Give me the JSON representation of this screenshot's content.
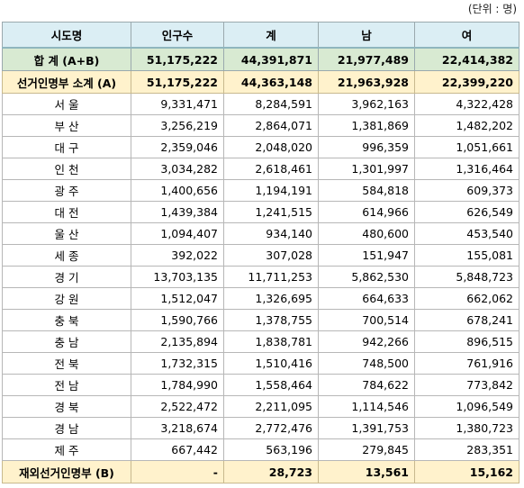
{
  "unit_label": "(단위 : 명)",
  "headers": [
    "시도명",
    "인구수",
    "계",
    "남",
    "여"
  ],
  "total_row": {
    "name": "합 계 (A+B)",
    "population": "51,175,222",
    "sum": "44,391,871",
    "male": "21,977,489",
    "female": "22,414,382"
  },
  "subtotal_row": {
    "name": "선거인명부 소계 (A)",
    "population": "51,175,222",
    "sum": "44,363,148",
    "male": "21,963,928",
    "female": "22,399,220"
  },
  "regions": [
    {
      "name": "서 울",
      "population": "9,331,471",
      "sum": "8,284,591",
      "male": "3,962,163",
      "female": "4,322,428"
    },
    {
      "name": "부 산",
      "population": "3,256,219",
      "sum": "2,864,071",
      "male": "1,381,869",
      "female": "1,482,202"
    },
    {
      "name": "대 구",
      "population": "2,359,046",
      "sum": "2,048,020",
      "male": "996,359",
      "female": "1,051,661"
    },
    {
      "name": "인 천",
      "population": "3,034,282",
      "sum": "2,618,461",
      "male": "1,301,997",
      "female": "1,316,464"
    },
    {
      "name": "광 주",
      "population": "1,400,656",
      "sum": "1,194,191",
      "male": "584,818",
      "female": "609,373"
    },
    {
      "name": "대 전",
      "population": "1,439,384",
      "sum": "1,241,515",
      "male": "614,966",
      "female": "626,549"
    },
    {
      "name": "울 산",
      "population": "1,094,407",
      "sum": "934,140",
      "male": "480,600",
      "female": "453,540"
    },
    {
      "name": "세 종",
      "population": "392,022",
      "sum": "307,028",
      "male": "151,947",
      "female": "155,081"
    },
    {
      "name": "경 기",
      "population": "13,703,135",
      "sum": "11,711,253",
      "male": "5,862,530",
      "female": "5,848,723"
    },
    {
      "name": "강 원",
      "population": "1,512,047",
      "sum": "1,326,695",
      "male": "664,633",
      "female": "662,062"
    },
    {
      "name": "충 북",
      "population": "1,590,766",
      "sum": "1,378,755",
      "male": "700,514",
      "female": "678,241"
    },
    {
      "name": "충 남",
      "population": "2,135,894",
      "sum": "1,838,781",
      "male": "942,266",
      "female": "896,515"
    },
    {
      "name": "전 북",
      "population": "1,732,315",
      "sum": "1,510,416",
      "male": "748,500",
      "female": "761,916"
    },
    {
      "name": "전 남",
      "population": "1,784,990",
      "sum": "1,558,464",
      "male": "784,622",
      "female": "773,842"
    },
    {
      "name": "경 북",
      "population": "2,522,472",
      "sum": "2,211,095",
      "male": "1,114,546",
      "female": "1,096,549"
    },
    {
      "name": "경 남",
      "population": "3,218,674",
      "sum": "2,772,476",
      "male": "1,391,753",
      "female": "1,380,723"
    },
    {
      "name": "제 주",
      "population": "667,442",
      "sum": "563,196",
      "male": "279,845",
      "female": "283,351"
    }
  ],
  "abroad_row": {
    "name": "재외선거인명부 (B)",
    "population": "-",
    "sum": "28,723",
    "male": "13,561",
    "female": "15,162"
  }
}
